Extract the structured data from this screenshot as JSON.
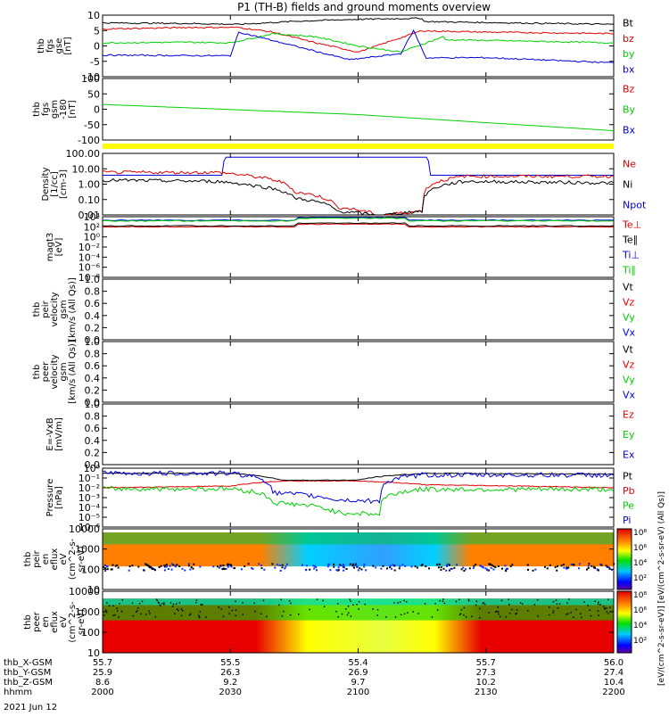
{
  "title": "P1 (TH-B) fields and ground moments overview",
  "date_label": "2021 Jun 12",
  "colors": {
    "black": "#000000",
    "red": "#e00000",
    "green": "#00d000",
    "blue": "#0000e0",
    "yellow": "#ffff00"
  },
  "panels": [
    {
      "id": "fgs",
      "ylabel": [
        "thb",
        "fgs",
        "gse",
        "[nT]"
      ],
      "ticks": [
        "10",
        "5",
        "0",
        "-5",
        "-10"
      ],
      "legend": [
        {
          "text": "Bt",
          "color": "black"
        },
        {
          "text": "bz",
          "color": "red"
        },
        {
          "text": "by",
          "color": "green"
        },
        {
          "text": "bx",
          "color": "blue"
        }
      ]
    },
    {
      "id": "fgs_gsm",
      "ylabel": [
        "thb",
        "fgs",
        "gsm",
        "-180",
        "[nT]"
      ],
      "ticks": [
        "100",
        "50",
        "0",
        "-50",
        "-100"
      ],
      "legend": [
        {
          "text": "Bz",
          "color": "red"
        },
        {
          "text": "By",
          "color": "green"
        },
        {
          "text": "Bx",
          "color": "blue"
        }
      ]
    },
    {
      "id": "density",
      "ylabel": [
        "Density",
        "[1/cc]",
        "[cm-3]"
      ],
      "ticks": [
        "100.00",
        "10.00",
        "1.00",
        "0.10",
        "0.01"
      ],
      "legend": [
        {
          "text": "Ne",
          "color": "red"
        },
        {
          "text": "Ni",
          "color": "black"
        },
        {
          "text": "Npot",
          "color": "blue"
        }
      ]
    },
    {
      "id": "temp",
      "ylabel": [
        "magt3",
        "[eV]"
      ],
      "ticks": [
        "10⁴",
        "10²",
        "10⁰",
        "10⁻²",
        "10⁻⁴",
        "10⁻⁶",
        "10⁻⁸"
      ],
      "legend": [
        {
          "text": "Te⊥",
          "color": "red"
        },
        {
          "text": "Te∥",
          "color": "black"
        },
        {
          "text": "Ti⊥",
          "color": "blue"
        },
        {
          "text": "Ti∥",
          "color": "green"
        }
      ]
    },
    {
      "id": "ivel",
      "ylabel": [
        "thb",
        "peir",
        "velocity",
        "gsm",
        "[km/s (All Qs)]"
      ],
      "ticks": [
        "1.0",
        "0.8",
        "0.6",
        "0.4",
        "0.2",
        "0.0"
      ],
      "legend": [
        {
          "text": "Vt",
          "color": "black"
        },
        {
          "text": "Vz",
          "color": "red"
        },
        {
          "text": "Vy",
          "color": "green"
        },
        {
          "text": "Vx",
          "color": "blue"
        }
      ]
    },
    {
      "id": "evel",
      "ylabel": [
        "thb",
        "peer",
        "velocity",
        "gsm",
        "[km/s (All Qs)]"
      ],
      "ticks": [
        "1.0",
        "0.8",
        "0.6",
        "0.4",
        "0.2",
        "0.0"
      ],
      "legend": [
        {
          "text": "Vt",
          "color": "black"
        },
        {
          "text": "Vz",
          "color": "red"
        },
        {
          "text": "Vy",
          "color": "green"
        },
        {
          "text": "Vx",
          "color": "blue"
        }
      ]
    },
    {
      "id": "efield",
      "ylabel": [
        "E=-VxB",
        "[mV/m]"
      ],
      "ticks": [
        "1.0",
        "0.8",
        "0.6",
        "0.4",
        "0.2",
        "0.0"
      ],
      "legend": [
        {
          "text": "Ez",
          "color": "red"
        },
        {
          "text": "Ey",
          "color": "green"
        },
        {
          "text": "Ex",
          "color": "blue"
        }
      ]
    },
    {
      "id": "pressure",
      "ylabel": [
        "Pressure",
        "[nPa]"
      ],
      "ticks": [
        "10⁰",
        "10⁻¹",
        "10⁻²",
        "10⁻³",
        "10⁻⁴",
        "10⁻⁵",
        "10⁻⁶"
      ],
      "legend": [
        {
          "text": "Pt",
          "color": "black"
        },
        {
          "text": "Pb",
          "color": "red"
        },
        {
          "text": "Pe",
          "color": "green"
        },
        {
          "text": "Pi",
          "color": "blue"
        }
      ]
    },
    {
      "id": "ispec",
      "ylabel": [
        "thb",
        "peir",
        "en",
        "eflux",
        "eV",
        "(cm^2-s-",
        "sr-eV)"
      ],
      "ticks": [
        "10000",
        "1000",
        "100",
        "10"
      ],
      "legend": []
    },
    {
      "id": "espec",
      "ylabel": [
        "thb",
        "peer",
        "en",
        "eflux",
        "eV",
        "(cm^2-s-",
        "sr-eV)"
      ],
      "ticks": [
        "10000",
        "1000",
        "100",
        "10"
      ],
      "legend": []
    }
  ],
  "colorbar": {
    "label": "[eV/(cm^2-s-sr-eV)] [eV/(cm^2-s-sr-eV) (All Qs)]",
    "ticks_top": [
      "10⁸",
      "10⁶",
      "10⁴",
      "10²"
    ],
    "ticks_bottom": [
      "10⁸",
      "10⁶",
      "10⁴",
      "10²"
    ]
  },
  "xaxis": {
    "rows": [
      {
        "label": "thb_X-GSM",
        "values": [
          "55.7",
          "55.5",
          "55.4",
          "55.7",
          "56.0"
        ]
      },
      {
        "label": "thb_Y-GSM",
        "values": [
          "25.9",
          "26.3",
          "26.9",
          "27.3",
          "27.4"
        ]
      },
      {
        "label": "thb_Z-GSM",
        "values": [
          "8.6",
          "9.2",
          "9.7",
          "10.2",
          "10.4"
        ]
      },
      {
        "label": "hhmm",
        "values": [
          "2000",
          "2030",
          "2100",
          "2130",
          "2200"
        ]
      }
    ]
  },
  "chart_data": [
    {
      "type": "line",
      "title": "P1 (TH-B) fields and ground moments overview",
      "x_unit": "hhmm",
      "xlim": [
        "2000",
        "2200"
      ],
      "series": [
        {
          "name": "Bt",
          "x": [
            "2000",
            "2020",
            "2032",
            "2045",
            "2058",
            "2075",
            "2100",
            "2130",
            "2200"
          ],
          "values": [
            7.5,
            7.3,
            7,
            8,
            8.6,
            9,
            8.3,
            7.6,
            7
          ]
        },
        {
          "name": "bz",
          "x": [
            "2000",
            "2020",
            "2032",
            "2040",
            "2050",
            "2060",
            "2075",
            "2100",
            "2130",
            "2200"
          ],
          "values": [
            5.5,
            6,
            6,
            4.5,
            1,
            -2,
            5,
            5.3,
            4.5,
            4
          ]
        },
        {
          "name": "by",
          "x": [
            "2000",
            "2020",
            "2030",
            "2040",
            "2050",
            "2060",
            "2070",
            "2080",
            "2100",
            "2130",
            "2200"
          ],
          "values": [
            1,
            1.2,
            1,
            4,
            3,
            0,
            -2,
            3,
            2.5,
            1.8,
            1
          ]
        },
        {
          "name": "bx",
          "x": [
            "2000",
            "2030",
            "2032",
            "2045",
            "2058",
            "2070",
            "2073",
            "2076",
            "2100",
            "2130",
            "2200"
          ],
          "values": [
            -3,
            -3.2,
            4.5,
            0,
            -4.5,
            -2.5,
            5,
            -4,
            -4,
            -3.8,
            -5.5
          ]
        }
      ],
      "ylim": [
        -10,
        10
      ]
    },
    {
      "type": "line",
      "series": [
        {
          "name": "Bz",
          "values": [
            0
          ]
        },
        {
          "name": "By",
          "x": [
            "2000",
            "2100",
            "2200"
          ],
          "values": [
            3,
            -35,
            -95
          ]
        },
        {
          "name": "Bx",
          "values": [
            0
          ]
        }
      ],
      "ylim": [
        -130,
        100
      ]
    },
    {
      "type": "line",
      "scale": "log",
      "series": [
        {
          "name": "Ne",
          "x": [
            "2000",
            "2027",
            "2035",
            "2045",
            "2055",
            "2065",
            "2075",
            "2085",
            "2200"
          ],
          "values": [
            10,
            10,
            5,
            0.3,
            0.02,
            0.004,
            0.01,
            5,
            5
          ]
        },
        {
          "name": "Ni",
          "x": [
            "2000",
            "2027",
            "2035",
            "2045",
            "2055",
            "2065",
            "2075",
            "2085",
            "2200"
          ],
          "values": [
            2.5,
            2,
            1,
            0.1,
            0.01,
            0.004,
            0.01,
            2,
            1.5
          ]
        },
        {
          "name": "Npot",
          "x": [
            "2000",
            "2028",
            "2029",
            "2076",
            "2077",
            "2200"
          ],
          "values": [
            6,
            6,
            150,
            150,
            6,
            6
          ]
        }
      ],
      "ylim": [
        0.005,
        300
      ]
    },
    {
      "type": "line",
      "scale": "log",
      "series": [
        {
          "name": "Te⊥",
          "values": [
            100
          ]
        },
        {
          "name": "Te∥",
          "values": [
            150
          ]
        },
        {
          "name": "Ti⊥",
          "values": [
            2000
          ]
        },
        {
          "name": "Ti∥",
          "values": [
            1500
          ]
        }
      ],
      "ylim": [
        1e-08,
        10000.0
      ]
    },
    {
      "type": "line",
      "series": [
        {
          "name": "Vt",
          "values": []
        },
        {
          "name": "Vz",
          "values": []
        },
        {
          "name": "Vy",
          "values": []
        },
        {
          "name": "Vx",
          "values": []
        }
      ],
      "ylim": [
        0,
        1
      ]
    },
    {
      "type": "line",
      "series": [
        {
          "name": "Vt",
          "values": []
        },
        {
          "name": "Vz",
          "values": []
        },
        {
          "name": "Vy",
          "values": []
        },
        {
          "name": "Vx",
          "values": []
        }
      ],
      "ylim": [
        0,
        1
      ]
    },
    {
      "type": "line",
      "series": [
        {
          "name": "Ez",
          "values": []
        },
        {
          "name": "Ey",
          "values": []
        },
        {
          "name": "Ex",
          "values": []
        }
      ],
      "ylim": [
        0,
        1
      ]
    },
    {
      "type": "line",
      "scale": "log",
      "series": [
        {
          "name": "Pt",
          "x": [
            "2000",
            "2030",
            "2042",
            "2060",
            "2076",
            "2200"
          ],
          "values": [
            0.3,
            0.3,
            0.06,
            0.06,
            0.3,
            0.25
          ]
        },
        {
          "name": "Pb",
          "x": [
            "2000",
            "2030",
            "2042",
            "2060",
            "2076",
            "2200"
          ],
          "values": [
            0.01,
            0.015,
            0.05,
            0.05,
            0.02,
            0.01
          ]
        },
        {
          "name": "Pe",
          "x": [
            "2000",
            "2030",
            "2040",
            "2055",
            "2065",
            "2075",
            "2200"
          ],
          "values": [
            0.008,
            0.008,
            0.0003,
            3e-05,
            2e-05,
            0.007,
            0.007
          ]
        },
        {
          "name": "Pi",
          "x": [
            "2000",
            "2030",
            "2040",
            "2055",
            "2065",
            "2075",
            "2200"
          ],
          "values": [
            0.3,
            0.3,
            0.003,
            0.0006,
            0.0004,
            0.2,
            0.2
          ]
        }
      ],
      "ylim": [
        1e-06,
        1
      ]
    },
    {
      "type": "heatmap",
      "ylim": [
        10,
        10000
      ],
      "scale": "log"
    },
    {
      "type": "heatmap",
      "ylim": [
        5,
        10000
      ],
      "scale": "log"
    }
  ]
}
